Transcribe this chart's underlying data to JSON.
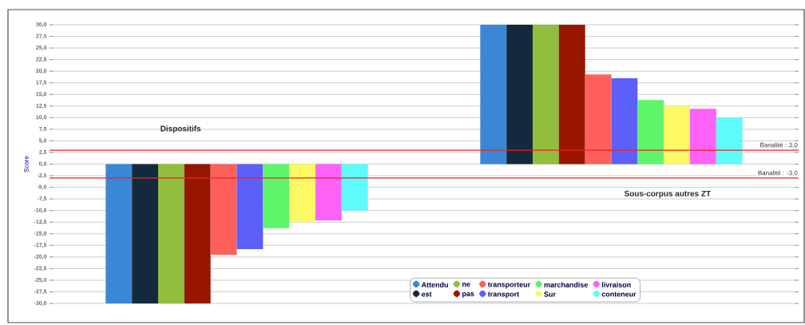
{
  "chart_data": {
    "type": "bar",
    "ylabel": "Score",
    "categories": [
      "Dispositifs",
      "Sous-corpus autres ZT"
    ],
    "series": [
      {
        "name": "Attendu",
        "color": "#3a87d6",
        "values": [
          -30,
          30
        ]
      },
      {
        "name": "est",
        "color": "#14293e",
        "values": [
          -30,
          30
        ]
      },
      {
        "name": "ne",
        "color": "#92bd3e",
        "values": [
          -30,
          30
        ]
      },
      {
        "name": "pas",
        "color": "#981500",
        "values": [
          -30,
          30
        ]
      },
      {
        "name": "transporteur",
        "color": "#ff5f5a",
        "values": [
          -19.5,
          19.3
        ]
      },
      {
        "name": "transport",
        "color": "#5d60f8",
        "values": [
          -18.3,
          18.5
        ]
      },
      {
        "name": "marchandise",
        "color": "#5ef56b",
        "values": [
          -13.8,
          13.8
        ]
      },
      {
        "name": "Sur",
        "color": "#fdf965",
        "values": [
          -12.5,
          12.5
        ]
      },
      {
        "name": "livraison",
        "color": "#ff62f6",
        "values": [
          -12.1,
          11.9
        ]
      },
      {
        "name": "conteneur",
        "color": "#5ffbfb",
        "values": [
          -10.0,
          10.0
        ]
      }
    ],
    "ylim": [
      -30,
      30
    ],
    "yticks": [
      {
        "value": -30,
        "label": "-30,0"
      },
      {
        "value": -27.5,
        "label": "-27,5"
      },
      {
        "value": -25,
        "label": "-25,0"
      },
      {
        "value": -22.5,
        "label": "-22,5"
      },
      {
        "value": -20,
        "label": "-20,0"
      },
      {
        "value": -17.5,
        "label": "-17,5"
      },
      {
        "value": -15,
        "label": "-15,0"
      },
      {
        "value": -12.5,
        "label": "-12,5"
      },
      {
        "value": -10,
        "label": "-10,0"
      },
      {
        "value": -7.5,
        "label": "-7,5"
      },
      {
        "value": -5,
        "label": "-5,0"
      },
      {
        "value": -2.5,
        "label": "-2,5"
      },
      {
        "value": 0,
        "label": "0,0"
      },
      {
        "value": 2.5,
        "label": "2,5"
      },
      {
        "value": 5,
        "label": "5,0"
      },
      {
        "value": 7.5,
        "label": "7,5"
      },
      {
        "value": 10,
        "label": "10,0"
      },
      {
        "value": 12.5,
        "label": "12,5"
      },
      {
        "value": 15,
        "label": "15,0"
      },
      {
        "value": 17.5,
        "label": "17,5"
      },
      {
        "value": 20,
        "label": "20,0"
      },
      {
        "value": 22.5,
        "label": "22,5"
      },
      {
        "value": 25,
        "label": "25,0"
      },
      {
        "value": 27.5,
        "label": "27,5"
      },
      {
        "value": 30,
        "label": "30,0"
      }
    ],
    "ref_lines": [
      {
        "axis": "y",
        "value": 3,
        "label": "Banalité : 3,0",
        "color": "#ee2222"
      },
      {
        "axis": "y",
        "value": -3,
        "label": "Banalité : -3,0",
        "color": "#ee2222"
      }
    ],
    "grid": "y",
    "legend": "bottom"
  }
}
